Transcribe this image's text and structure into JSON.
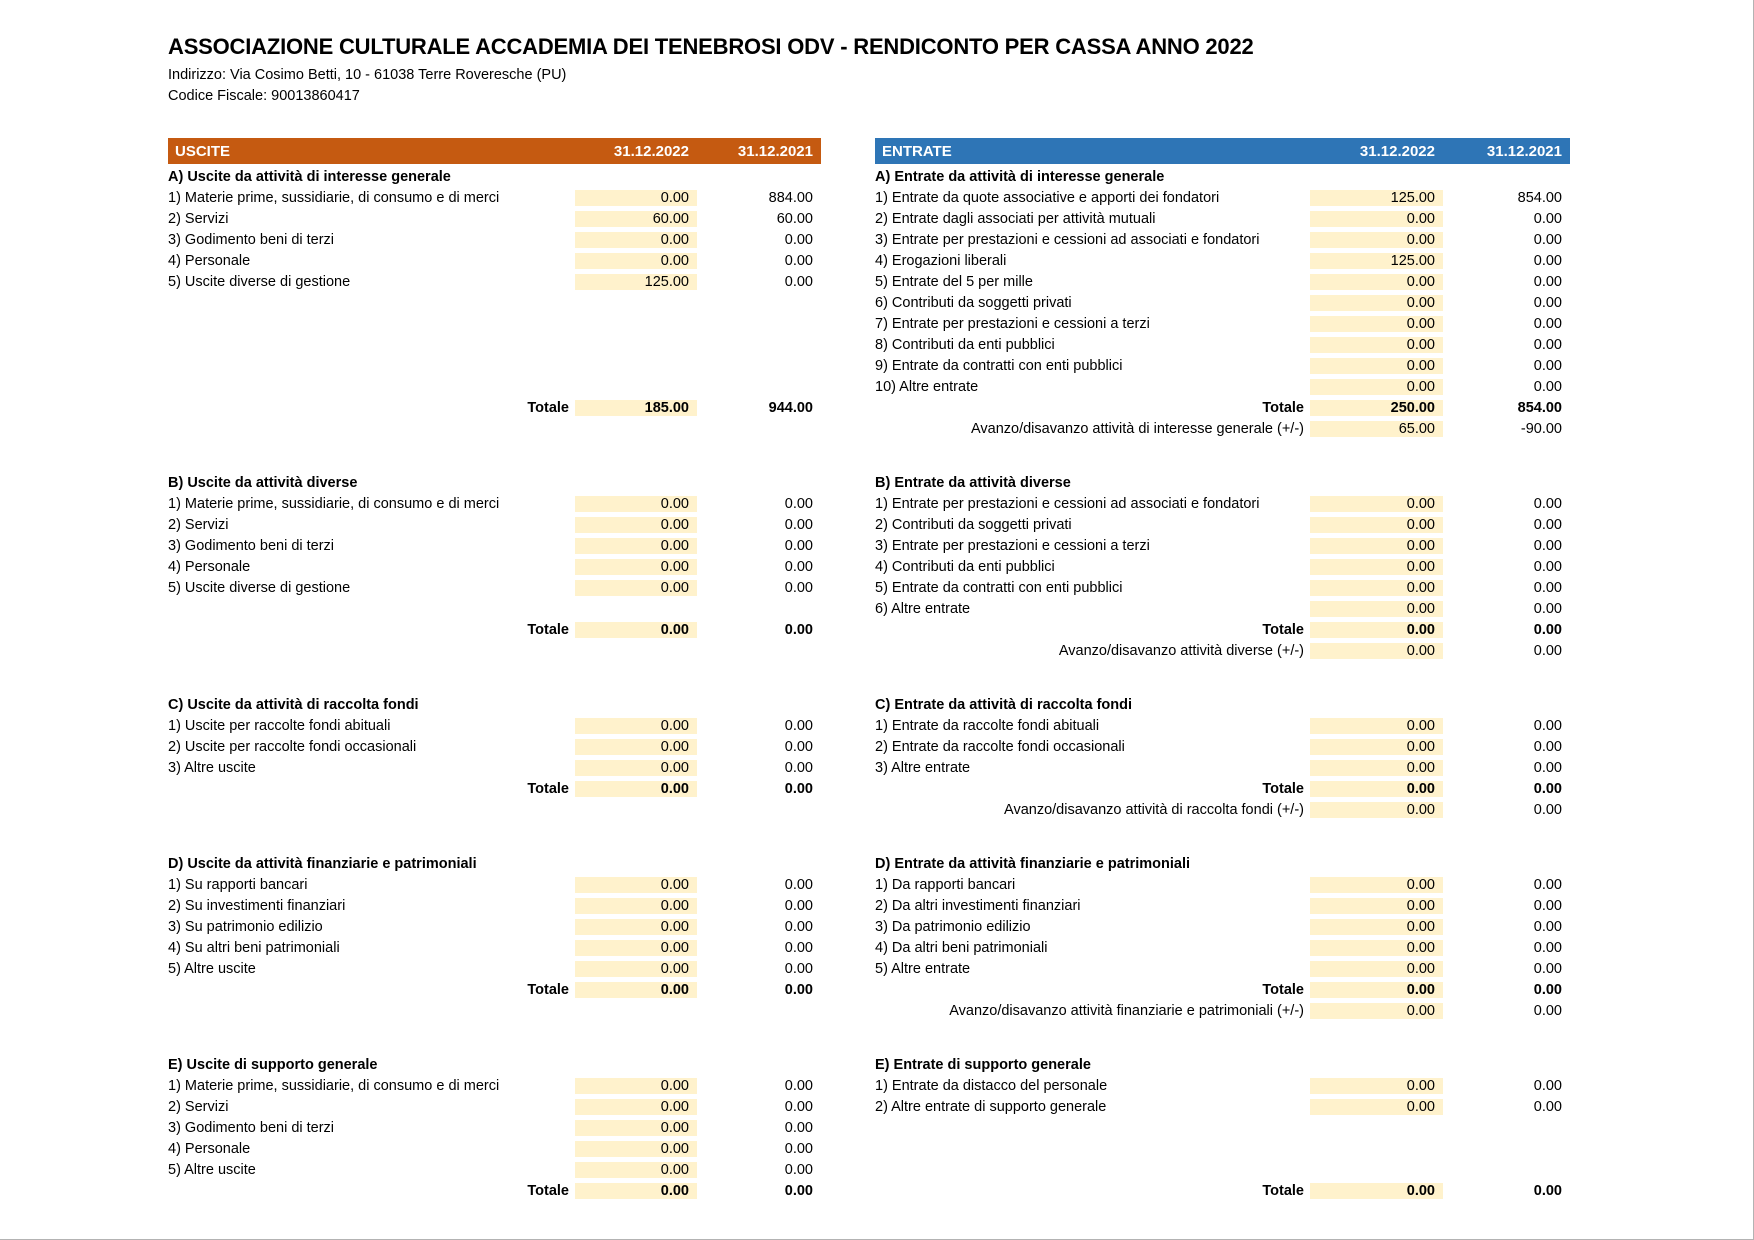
{
  "document": {
    "title": "ASSOCIAZIONE CULTURALE ACCADEMIA DEI TENEBROSI ODV - RENDICONTO PER CASSA ANNO 2022",
    "address_line": "Indirizzo: Via Cosimo Betti, 10 - 61038 Terre Roveresche (PU)",
    "fiscal_code_line": "Codice Fiscale: 90013860417"
  },
  "colors": {
    "uscite_header_bg": "#C55A11",
    "entrate_header_bg": "#2E75B6",
    "header_text": "#FFFFFF",
    "highlight_cell_bg": "#FFF2CC",
    "body_text": "#000000"
  },
  "columns": {
    "year_2022": "31.12.2022",
    "year_2021": "31.12.2021"
  },
  "uscite": {
    "title": "USCITE",
    "sections": [
      {
        "heading": "A) Uscite da attività di interesse generale",
        "items": [
          {
            "label": "1) Materie prime, sussidiarie, di consumo e di merci",
            "v2022": "0.00",
            "v2021": "884.00"
          },
          {
            "label": "2) Servizi",
            "v2022": "60.00",
            "v2021": "60.00"
          },
          {
            "label": "3) Godimento beni di terzi",
            "v2022": "0.00",
            "v2021": "0.00"
          },
          {
            "label": "4) Personale",
            "v2022": "0.00",
            "v2021": "0.00"
          },
          {
            "label": "5) Uscite diverse di gestione",
            "v2022": "125.00",
            "v2021": "0.00"
          }
        ],
        "blanks_after": 5,
        "blanks_highlighted": false,
        "total": {
          "label": "Totale",
          "v2022": "185.00",
          "v2021": "944.00"
        },
        "avanzo": null,
        "pad_bottom": true
      },
      {
        "heading": "B) Uscite da attività diverse",
        "items": [
          {
            "label": "1) Materie prime, sussidiarie, di consumo e di merci",
            "v2022": "0.00",
            "v2021": "0.00"
          },
          {
            "label": "2) Servizi",
            "v2022": "0.00",
            "v2021": "0.00"
          },
          {
            "label": "3) Godimento beni di terzi",
            "v2022": "0.00",
            "v2021": "0.00"
          },
          {
            "label": "4) Personale",
            "v2022": "0.00",
            "v2021": "0.00"
          },
          {
            "label": "5) Uscite diverse di gestione",
            "v2022": "0.00",
            "v2021": "0.00"
          }
        ],
        "blanks_after": 1,
        "blanks_highlighted": true,
        "total": {
          "label": "Totale",
          "v2022": "0.00",
          "v2021": "0.00"
        },
        "avanzo": null,
        "pad_bottom": true
      },
      {
        "heading": "C) Uscite da attività di raccolta fondi",
        "items": [
          {
            "label": "1) Uscite per raccolte fondi abituali",
            "v2022": "0.00",
            "v2021": "0.00"
          },
          {
            "label": "2) Uscite per raccolte fondi occasionali",
            "v2022": "0.00",
            "v2021": "0.00"
          },
          {
            "label": "3) Altre uscite",
            "v2022": "0.00",
            "v2021": "0.00"
          }
        ],
        "blanks_after": 0,
        "blanks_highlighted": false,
        "total": {
          "label": "Totale",
          "v2022": "0.00",
          "v2021": "0.00"
        },
        "avanzo": null,
        "pad_bottom": true
      },
      {
        "heading": "D) Uscite da attività finanziarie e patrimoniali",
        "items": [
          {
            "label": "1) Su rapporti bancari",
            "v2022": "0.00",
            "v2021": "0.00"
          },
          {
            "label": "2) Su investimenti finanziari",
            "v2022": "0.00",
            "v2021": "0.00"
          },
          {
            "label": "3) Su patrimonio edilizio",
            "v2022": "0.00",
            "v2021": "0.00"
          },
          {
            "label": "4) Su altri beni patrimoniali",
            "v2022": "0.00",
            "v2021": "0.00"
          },
          {
            "label": "5) Altre uscite",
            "v2022": "0.00",
            "v2021": "0.00"
          }
        ],
        "blanks_after": 0,
        "blanks_highlighted": false,
        "total": {
          "label": "Totale",
          "v2022": "0.00",
          "v2021": "0.00"
        },
        "avanzo": null,
        "pad_bottom": true
      },
      {
        "heading": "E) Uscite di supporto generale",
        "items": [
          {
            "label": "1) Materie prime, sussidiarie, di consumo e di merci",
            "v2022": "0.00",
            "v2021": "0.00"
          },
          {
            "label": "2) Servizi",
            "v2022": "0.00",
            "v2021": "0.00"
          },
          {
            "label": "3) Godimento beni di terzi",
            "v2022": "0.00",
            "v2021": "0.00"
          },
          {
            "label": "4) Personale",
            "v2022": "0.00",
            "v2021": "0.00"
          },
          {
            "label": "5) Altre uscite",
            "v2022": "0.00",
            "v2021": "0.00"
          }
        ],
        "blanks_after": 0,
        "blanks_highlighted": false,
        "total": {
          "label": "Totale",
          "v2022": "0.00",
          "v2021": "0.00"
        },
        "avanzo": null,
        "pad_bottom": false
      }
    ]
  },
  "entrate": {
    "title": "ENTRATE",
    "sections": [
      {
        "heading": "A) Entrate da attività di interesse generale",
        "items": [
          {
            "label": "1) Entrate da quote associative e apporti dei fondatori",
            "v2022": "125.00",
            "v2021": "854.00"
          },
          {
            "label": "2) Entrate dagli associati per attività mutuali",
            "v2022": "0.00",
            "v2021": "0.00"
          },
          {
            "label": "3) Entrate per prestazioni e cessioni ad associati e fondatori",
            "v2022": "0.00",
            "v2021": "0.00"
          },
          {
            "label": "4) Erogazioni liberali",
            "v2022": "125.00",
            "v2021": "0.00"
          },
          {
            "label": "5) Entrate del 5 per mille",
            "v2022": "0.00",
            "v2021": "0.00"
          },
          {
            "label": "6) Contributi da soggetti privati",
            "v2022": "0.00",
            "v2021": "0.00"
          },
          {
            "label": "7) Entrate per prestazioni e cessioni a terzi",
            "v2022": "0.00",
            "v2021": "0.00"
          },
          {
            "label": "8) Contributi da enti pubblici",
            "v2022": "0.00",
            "v2021": "0.00"
          },
          {
            "label": "9) Entrate da contratti con enti pubblici",
            "v2022": "0.00",
            "v2021": "0.00"
          },
          {
            "label": "10) Altre entrate",
            "v2022": "0.00",
            "v2021": "0.00"
          }
        ],
        "blanks_after": 0,
        "blanks_highlighted": false,
        "total": {
          "label": "Totale",
          "v2022": "250.00",
          "v2021": "854.00"
        },
        "avanzo": {
          "label": "Avanzo/disavanzo attività di interesse generale (+/-)",
          "v2022": "65.00",
          "v2021": "-90.00"
        },
        "pad_bottom": false
      },
      {
        "heading": "B) Entrate da attività diverse",
        "items": [
          {
            "label": "1) Entrate per prestazioni e cessioni ad associati e fondatori",
            "v2022": "0.00",
            "v2021": "0.00"
          },
          {
            "label": "2) Contributi da soggetti privati",
            "v2022": "0.00",
            "v2021": "0.00"
          },
          {
            "label": "3) Entrate per prestazioni e cessioni a terzi",
            "v2022": "0.00",
            "v2021": "0.00"
          },
          {
            "label": "4) Contributi da enti pubblici",
            "v2022": "0.00",
            "v2021": "0.00"
          },
          {
            "label": "5) Entrate da contratti con enti pubblici",
            "v2022": "0.00",
            "v2021": "0.00"
          },
          {
            "label": "6) Altre entrate",
            "v2022": "0.00",
            "v2021": "0.00"
          }
        ],
        "blanks_after": 0,
        "blanks_highlighted": false,
        "total": {
          "label": "Totale",
          "v2022": "0.00",
          "v2021": "0.00"
        },
        "avanzo": {
          "label": "Avanzo/disavanzo attività diverse (+/-)",
          "v2022": "0.00",
          "v2021": "0.00"
        },
        "pad_bottom": false
      },
      {
        "heading": "C) Entrate da attività di raccolta fondi",
        "items": [
          {
            "label": "1) Entrate da raccolte fondi abituali",
            "v2022": "0.00",
            "v2021": "0.00"
          },
          {
            "label": "2) Entrate da raccolte fondi occasionali",
            "v2022": "0.00",
            "v2021": "0.00"
          },
          {
            "label": "3) Altre entrate",
            "v2022": "0.00",
            "v2021": "0.00"
          }
        ],
        "blanks_after": 0,
        "blanks_highlighted": false,
        "total": {
          "label": "Totale",
          "v2022": "0.00",
          "v2021": "0.00"
        },
        "avanzo": {
          "label": "Avanzo/disavanzo attività di raccolta fondi (+/-)",
          "v2022": "0.00",
          "v2021": "0.00"
        },
        "pad_bottom": false
      },
      {
        "heading": "D) Entrate da attività finanziarie e patrimoniali",
        "items": [
          {
            "label": "1) Da rapporti bancari",
            "v2022": "0.00",
            "v2021": "0.00"
          },
          {
            "label": "2) Da altri investimenti finanziari",
            "v2022": "0.00",
            "v2021": "0.00"
          },
          {
            "label": "3) Da patrimonio edilizio",
            "v2022": "0.00",
            "v2021": "0.00"
          },
          {
            "label": "4) Da altri beni patrimoniali",
            "v2022": "0.00",
            "v2021": "0.00"
          },
          {
            "label": "5) Altre entrate",
            "v2022": "0.00",
            "v2021": "0.00"
          }
        ],
        "blanks_after": 0,
        "blanks_highlighted": false,
        "total": {
          "label": "Totale",
          "v2022": "0.00",
          "v2021": "0.00"
        },
        "avanzo": {
          "label": "Avanzo/disavanzo attività finanziarie e patrimoniali (+/-)",
          "v2022": "0.00",
          "v2021": "0.00"
        },
        "pad_bottom": false
      },
      {
        "heading": "E) Entrate di supporto generale",
        "items": [
          {
            "label": "1) Entrate da distacco del personale",
            "v2022": "0.00",
            "v2021": "0.00"
          },
          {
            "label": "2) Altre entrate di supporto generale",
            "v2022": "0.00",
            "v2021": "0.00"
          }
        ],
        "blanks_after": 3,
        "blanks_highlighted": true,
        "total": {
          "label": "Totale",
          "v2022": "0.00",
          "v2021": "0.00"
        },
        "avanzo": null,
        "pad_bottom": false
      }
    ]
  }
}
